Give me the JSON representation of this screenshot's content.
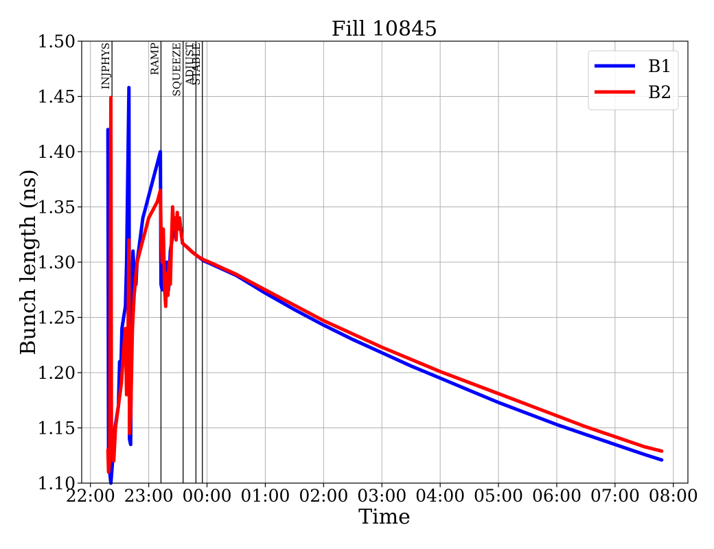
{
  "chart_data": {
    "type": "line",
    "title": "Fill 10845",
    "xlabel": "Time",
    "ylabel": "Bunch length (ns)",
    "x_unit": "hours after 22:00 (22:00 = 0)",
    "xlim": [
      -0.15,
      10.25
    ],
    "ylim": [
      1.1,
      1.5
    ],
    "grid": true,
    "legend_position": "top-right",
    "x_ticks": [
      {
        "value": 0,
        "label": "22:00"
      },
      {
        "value": 1,
        "label": "23:00"
      },
      {
        "value": 2,
        "label": "00:00"
      },
      {
        "value": 3,
        "label": "01:00"
      },
      {
        "value": 4,
        "label": "02:00"
      },
      {
        "value": 5,
        "label": "03:00"
      },
      {
        "value": 6,
        "label": "04:00"
      },
      {
        "value": 7,
        "label": "05:00"
      },
      {
        "value": 8,
        "label": "06:00"
      },
      {
        "value": 9,
        "label": "07:00"
      },
      {
        "value": 10,
        "label": "08:00"
      }
    ],
    "y_ticks": [
      {
        "value": 1.1,
        "label": "1.10"
      },
      {
        "value": 1.15,
        "label": "1.15"
      },
      {
        "value": 1.2,
        "label": "1.20"
      },
      {
        "value": 1.25,
        "label": "1.25"
      },
      {
        "value": 1.3,
        "label": "1.30"
      },
      {
        "value": 1.35,
        "label": "1.35"
      },
      {
        "value": 1.4,
        "label": "1.40"
      },
      {
        "value": 1.45,
        "label": "1.45"
      },
      {
        "value": 1.5,
        "label": "1.50"
      }
    ],
    "phases": [
      {
        "label": "INJPHYS",
        "x": 0.37
      },
      {
        "label": "RAMP",
        "x": 1.21
      },
      {
        "label": "SQUEEZE",
        "x": 1.59
      },
      {
        "label": "ADJUST",
        "x": 1.81
      },
      {
        "label": "STABLE",
        "x": 1.92
      }
    ],
    "series": [
      {
        "name": "B1",
        "color": "#0000ff",
        "points": [
          [
            0.3,
            1.42
          ],
          [
            0.31,
            1.13
          ],
          [
            0.33,
            1.11
          ],
          [
            0.35,
            1.1
          ],
          [
            0.38,
            1.12
          ],
          [
            0.42,
            1.15
          ],
          [
            0.48,
            1.17
          ],
          [
            0.5,
            1.21
          ],
          [
            0.52,
            1.2
          ],
          [
            0.54,
            1.24
          ],
          [
            0.57,
            1.25
          ],
          [
            0.6,
            1.26
          ],
          [
            0.62,
            1.3
          ],
          [
            0.64,
            1.38
          ],
          [
            0.66,
            1.458
          ],
          [
            0.67,
            1.14
          ],
          [
            0.69,
            1.135
          ],
          [
            0.71,
            1.27
          ],
          [
            0.73,
            1.31
          ],
          [
            0.75,
            1.29
          ],
          [
            0.78,
            1.28
          ],
          [
            0.8,
            1.3
          ],
          [
            0.85,
            1.32
          ],
          [
            0.9,
            1.34
          ],
          [
            0.95,
            1.35
          ],
          [
            1.0,
            1.36
          ],
          [
            1.05,
            1.37
          ],
          [
            1.1,
            1.38
          ],
          [
            1.15,
            1.39
          ],
          [
            1.2,
            1.4
          ],
          [
            1.21,
            1.28
          ],
          [
            1.23,
            1.275
          ],
          [
            1.25,
            1.31
          ],
          [
            1.28,
            1.27
          ],
          [
            1.31,
            1.3
          ],
          [
            1.34,
            1.275
          ],
          [
            1.37,
            1.31
          ],
          [
            1.4,
            1.32
          ],
          [
            1.43,
            1.33
          ],
          [
            1.46,
            1.34
          ],
          [
            1.49,
            1.33
          ],
          [
            1.52,
            1.34
          ],
          [
            1.55,
            1.33
          ],
          [
            1.58,
            1.317
          ],
          [
            1.65,
            1.314
          ],
          [
            1.75,
            1.309
          ],
          [
            1.85,
            1.305
          ],
          [
            1.95,
            1.301
          ],
          [
            2.0,
            1.3
          ],
          [
            2.5,
            1.288
          ],
          [
            3.0,
            1.272
          ],
          [
            3.5,
            1.257
          ],
          [
            4.0,
            1.243
          ],
          [
            4.5,
            1.23
          ],
          [
            5.0,
            1.218
          ],
          [
            5.5,
            1.206
          ],
          [
            6.0,
            1.195
          ],
          [
            6.5,
            1.184
          ],
          [
            7.0,
            1.173
          ],
          [
            7.5,
            1.163
          ],
          [
            8.0,
            1.153
          ],
          [
            8.5,
            1.144
          ],
          [
            9.0,
            1.135
          ],
          [
            9.5,
            1.126
          ],
          [
            9.8,
            1.121
          ]
        ]
      },
      {
        "name": "B2",
        "color": "#ff0000",
        "points": [
          [
            0.3,
            1.13
          ],
          [
            0.31,
            1.11
          ],
          [
            0.33,
            1.12
          ],
          [
            0.35,
            1.449
          ],
          [
            0.36,
            1.15
          ],
          [
            0.38,
            1.13
          ],
          [
            0.4,
            1.12
          ],
          [
            0.43,
            1.15
          ],
          [
            0.48,
            1.17
          ],
          [
            0.53,
            1.19
          ],
          [
            0.57,
            1.22
          ],
          [
            0.6,
            1.24
          ],
          [
            0.62,
            1.18
          ],
          [
            0.64,
            1.21
          ],
          [
            0.66,
            1.32
          ],
          [
            0.67,
            1.145
          ],
          [
            0.69,
            1.16
          ],
          [
            0.72,
            1.24
          ],
          [
            0.75,
            1.27
          ],
          [
            0.8,
            1.3
          ],
          [
            0.85,
            1.31
          ],
          [
            0.9,
            1.32
          ],
          [
            0.95,
            1.33
          ],
          [
            1.0,
            1.34
          ],
          [
            1.05,
            1.345
          ],
          [
            1.1,
            1.35
          ],
          [
            1.15,
            1.355
          ],
          [
            1.2,
            1.365
          ],
          [
            1.21,
            1.33
          ],
          [
            1.23,
            1.3
          ],
          [
            1.25,
            1.33
          ],
          [
            1.27,
            1.28
          ],
          [
            1.29,
            1.26
          ],
          [
            1.31,
            1.29
          ],
          [
            1.33,
            1.27
          ],
          [
            1.35,
            1.3
          ],
          [
            1.37,
            1.28
          ],
          [
            1.39,
            1.32
          ],
          [
            1.41,
            1.35
          ],
          [
            1.43,
            1.33
          ],
          [
            1.45,
            1.34
          ],
          [
            1.47,
            1.32
          ],
          [
            1.49,
            1.345
          ],
          [
            1.51,
            1.33
          ],
          [
            1.53,
            1.34
          ],
          [
            1.55,
            1.33
          ],
          [
            1.58,
            1.317
          ],
          [
            1.65,
            1.314
          ],
          [
            1.75,
            1.309
          ],
          [
            1.85,
            1.305
          ],
          [
            1.95,
            1.302
          ],
          [
            2.0,
            1.301
          ],
          [
            2.5,
            1.289
          ],
          [
            3.0,
            1.275
          ],
          [
            3.5,
            1.261
          ],
          [
            4.0,
            1.247
          ],
          [
            4.5,
            1.235
          ],
          [
            5.0,
            1.223
          ],
          [
            5.5,
            1.212
          ],
          [
            6.0,
            1.201
          ],
          [
            6.5,
            1.191
          ],
          [
            7.0,
            1.181
          ],
          [
            7.5,
            1.171
          ],
          [
            8.0,
            1.161
          ],
          [
            8.5,
            1.151
          ],
          [
            9.0,
            1.142
          ],
          [
            9.5,
            1.133
          ],
          [
            9.8,
            1.129
          ]
        ]
      }
    ]
  }
}
